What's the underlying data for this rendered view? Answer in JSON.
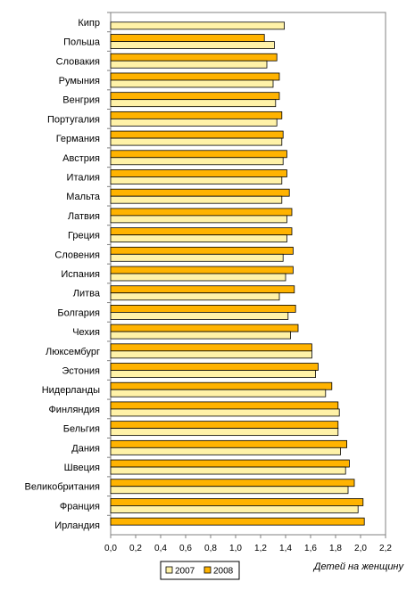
{
  "chart_data": {
    "type": "bar",
    "orientation": "horizontal",
    "categories": [
      "Кипр",
      "Польша",
      "Словакия",
      "Румыния",
      "Венгрия",
      "Португалия",
      "Германия",
      "Австрия",
      "Италия",
      "Мальта",
      "Латвия",
      "Греция",
      "Словения",
      "Испания",
      "Литва",
      "Болгария",
      "Чехия",
      "Люксембург",
      "Эстония",
      "Нидерланды",
      "Финляндия",
      "Бельгия",
      "Дания",
      "Швеция",
      "Великобритания",
      "Франция",
      "Ирландия"
    ],
    "series": [
      {
        "name": "2007",
        "color": "#FFF2A8",
        "values": [
          1.39,
          1.31,
          1.25,
          1.3,
          1.32,
          1.33,
          1.37,
          1.38,
          1.37,
          1.37,
          1.41,
          1.41,
          1.38,
          1.4,
          1.35,
          1.42,
          1.44,
          1.61,
          1.64,
          1.72,
          1.83,
          1.82,
          1.84,
          1.88,
          1.9,
          1.98,
          null
        ]
      },
      {
        "name": "2008",
        "color": "#FFB300",
        "values": [
          null,
          1.23,
          1.33,
          1.35,
          1.35,
          1.37,
          1.38,
          1.41,
          1.41,
          1.43,
          1.45,
          1.45,
          1.46,
          1.46,
          1.47,
          1.48,
          1.5,
          1.61,
          1.66,
          1.77,
          1.82,
          1.82,
          1.89,
          1.91,
          1.95,
          2.02,
          2.03
        ]
      }
    ],
    "xlim": [
      0,
      2.2
    ],
    "xticks": [
      "0,0",
      "0,2",
      "0,4",
      "0,6",
      "0,8",
      "1,0",
      "1,2",
      "1,4",
      "1,6",
      "1,8",
      "2,0",
      "2,2"
    ],
    "xlabel": "Детей на женщину",
    "grid": false,
    "legend": "bottom"
  }
}
